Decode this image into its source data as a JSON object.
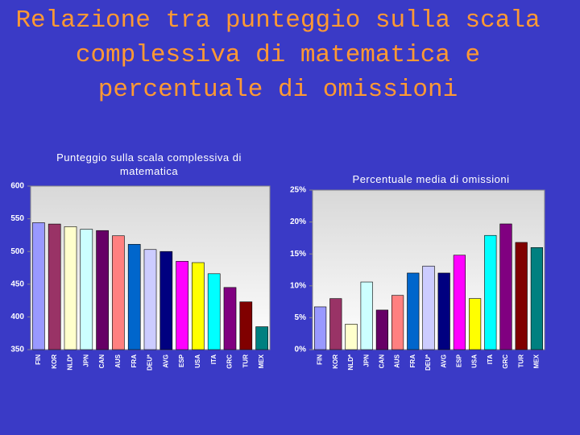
{
  "title": "Relazione tra punteggio sulla scala complessiva di matematica e percentuale di omissioni",
  "chart_data": [
    {
      "type": "bar",
      "title": "Punteggio sulla scala complessiva di matematica",
      "categories": [
        "FIN",
        "KOR",
        "NLD*",
        "JPN",
        "CAN",
        "AUS",
        "FRA",
        "DEU*",
        "AVG",
        "ESP",
        "USA",
        "ITA",
        "GRC",
        "TUR",
        "MEX"
      ],
      "values": [
        544,
        542,
        538,
        534,
        532,
        524,
        511,
        503,
        500,
        485,
        483,
        466,
        445,
        423,
        385
      ],
      "colors": [
        "#9999ff",
        "#993366",
        "#ffffcc",
        "#ccffff",
        "#660066",
        "#ff8080",
        "#0066cc",
        "#ccccff",
        "#000080",
        "#ff00ff",
        "#ffff00",
        "#00ffff",
        "#800080",
        "#800000",
        "#008080"
      ],
      "ylim": [
        350,
        600
      ],
      "yticks": [
        350,
        400,
        450,
        500,
        550,
        600
      ]
    },
    {
      "type": "bar",
      "title": "Percentuale media di omissioni",
      "categories": [
        "FIN",
        "KOR",
        "NLD*",
        "JPN",
        "CAN",
        "AUS",
        "FRA",
        "DEU*",
        "AVG",
        "ESP",
        "USA",
        "ITA",
        "GRC",
        "TUR",
        "MEX"
      ],
      "values": [
        6.7,
        8.0,
        4.0,
        10.6,
        6.2,
        8.5,
        12.0,
        13.1,
        12.0,
        14.8,
        8.0,
        17.9,
        19.7,
        16.8,
        16.0
      ],
      "colors": [
        "#9999ff",
        "#993366",
        "#ffffcc",
        "#ccffff",
        "#660066",
        "#ff8080",
        "#0066cc",
        "#ccccff",
        "#000080",
        "#ff00ff",
        "#ffff00",
        "#00ffff",
        "#800080",
        "#800000",
        "#008080"
      ],
      "ylim": [
        0,
        25
      ],
      "yticks": [
        {
          "value": 0,
          "label": "0%"
        },
        {
          "value": 5,
          "label": "5%"
        },
        {
          "value": 10,
          "label": "10%"
        },
        {
          "value": 15,
          "label": "15%"
        },
        {
          "value": 20,
          "label": "20%"
        },
        {
          "value": 25,
          "label": "25%"
        }
      ]
    }
  ]
}
